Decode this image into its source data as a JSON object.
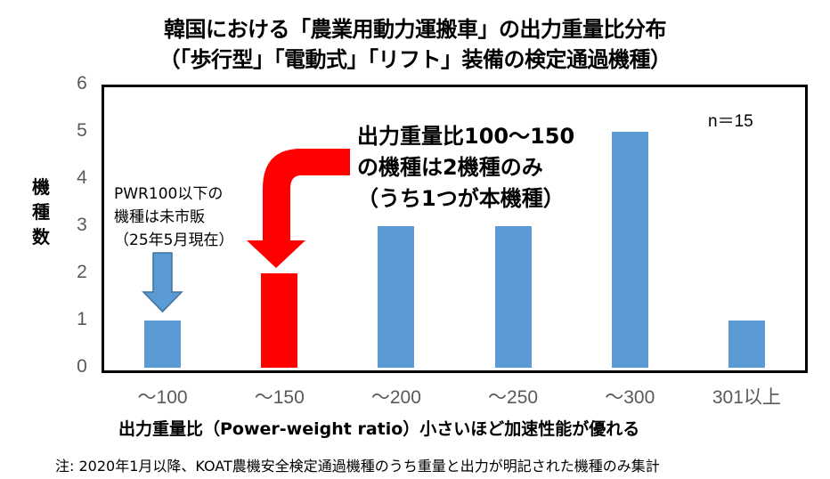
{
  "title_line1": "韓国における「農業用動力運搬車」の出力重量比分布",
  "title_line2": "（「歩行型」「電動式」「リフト」装備の検定通過機種）",
  "chart_data": {
    "type": "bar",
    "title": "韓国における「農業用動力運搬車」の出力重量比分布（「歩行型」「電動式」「リフト」装備の検定通過機種）",
    "xlabel": "出力重量比（Power-weight ratio）小さいほど加速性能が優れる",
    "ylabel": "機種数",
    "categories": [
      "～100",
      "～150",
      "～200",
      "～250",
      "～300",
      "301以上"
    ],
    "values": [
      1,
      2,
      3,
      3,
      5,
      1
    ],
    "bar_colors": [
      "#5b9bd5",
      "#ff0000",
      "#5b9bd5",
      "#5b9bd5",
      "#5b9bd5",
      "#5b9bd5"
    ],
    "ylim": [
      0,
      6
    ],
    "yticks": [
      0,
      1,
      2,
      3,
      4,
      5,
      6
    ],
    "grid": false,
    "legend": "none",
    "annotations": [
      "n＝15",
      "出力重量比100～150の機種は2機種のみ（うち1つが本機種）",
      "PWR100以下の機種は未市販（25年5月現在）"
    ]
  },
  "y_axis": {
    "label_chars": [
      "機",
      "種",
      "数"
    ],
    "ticks": [
      "0",
      "1",
      "2",
      "3",
      "4",
      "5",
      "6"
    ]
  },
  "x_axis": {
    "ticks": [
      "～100",
      "～150",
      "～200",
      "～250",
      "～300",
      "301以上"
    ],
    "label": "出力重量比（Power-weight ratio）小さいほど加速性能が優れる"
  },
  "annotations": {
    "n": "n＝15",
    "callout_lines": [
      "出力重量比100～150",
      "の機種は2機種のみ",
      "（うち1つが本機種）"
    ],
    "pwr_note_lines": [
      "PWR100以下の",
      "機種は未市販",
      "（25年5月現在）"
    ]
  },
  "colors": {
    "bar_default": "#5b9bd5",
    "bar_highlight": "#ff0000",
    "arrow_blue": "#5b9bd5",
    "arrow_blue_stroke": "#41719c",
    "arrow_red": "#ff0000",
    "tick_text": "#595959"
  },
  "footnote": "注: 2020年1月以降、KOAT農機安全検定通過機種のうち重量と出力が明記された機種のみ集計"
}
